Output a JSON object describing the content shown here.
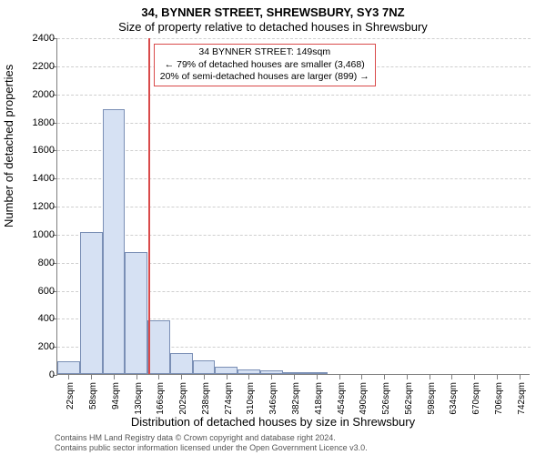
{
  "chart": {
    "type": "histogram",
    "title_main": "34, BYNNER STREET, SHREWSBURY, SY3 7NZ",
    "title_sub": "Size of property relative to detached houses in Shrewsbury",
    "title_fontsize": 13,
    "ylabel": "Number of detached properties",
    "xlabel": "Distribution of detached houses by size in Shrewsbury",
    "label_fontsize": 13,
    "background_color": "#ffffff",
    "grid_color": "#cfcfcf",
    "axis_color": "#808080",
    "bar_fill": "#d6e1f3",
    "bar_border": "#7a8fb5",
    "marker_color": "#d94a4a",
    "marker_x": 149,
    "xlim": [
      4,
      760
    ],
    "ylim": [
      0,
      2400
    ],
    "ytick_step": 200,
    "xticks": [
      22,
      58,
      94,
      130,
      166,
      202,
      238,
      274,
      310,
      346,
      382,
      418,
      454,
      490,
      526,
      562,
      598,
      634,
      670,
      706,
      742
    ],
    "xtick_suffix": "sqm",
    "bar_width_data": 36,
    "bars": [
      {
        "x": 22,
        "y": 90
      },
      {
        "x": 58,
        "y": 1010
      },
      {
        "x": 94,
        "y": 1890
      },
      {
        "x": 130,
        "y": 870
      },
      {
        "x": 166,
        "y": 380
      },
      {
        "x": 202,
        "y": 150
      },
      {
        "x": 238,
        "y": 100
      },
      {
        "x": 274,
        "y": 55
      },
      {
        "x": 310,
        "y": 35
      },
      {
        "x": 346,
        "y": 25
      },
      {
        "x": 382,
        "y": 15
      },
      {
        "x": 418,
        "y": 15
      }
    ],
    "annotation": {
      "line1": "34 BYNNER STREET: 149sqm",
      "line2": "← 79% of detached houses are smaller (3,468)",
      "line3": "20% of semi-detached houses are larger (899) →",
      "border_color": "#d94a4a",
      "fontsize": 10.5
    },
    "footer_line1": "Contains HM Land Registry data © Crown copyright and database right 2024.",
    "footer_line2": "Contains public sector information licensed under the Open Government Licence v3.0.",
    "footer_fontsize": 9,
    "footer_color": "#555555"
  }
}
